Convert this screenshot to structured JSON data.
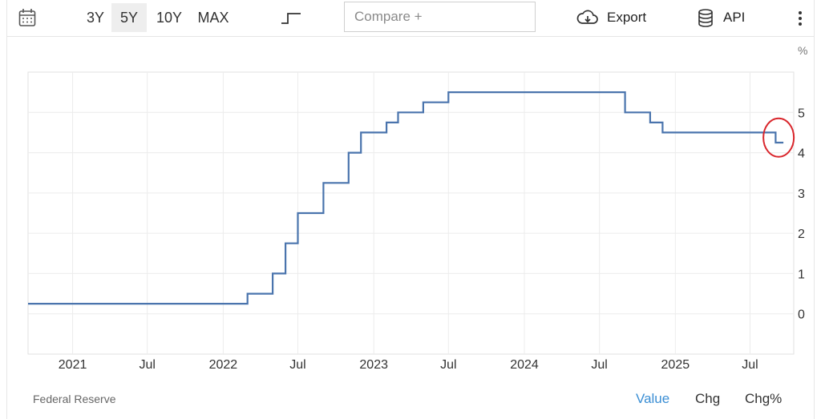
{
  "toolbar": {
    "ranges": [
      "3Y",
      "5Y",
      "10Y",
      "MAX"
    ],
    "active_range": "5Y",
    "compare_placeholder": "Compare +",
    "export_label": "Export",
    "api_label": "API"
  },
  "footer": {
    "source": "Federal Reserve",
    "modes": [
      "Value",
      "Chg",
      "Chg%"
    ],
    "active_mode": "Value"
  },
  "colors": {
    "line": "#4a74ad",
    "highlight_circle": "#d9262c",
    "active_mode": "#3a8ed4"
  },
  "chart_data": {
    "type": "line",
    "step": true,
    "unit_label": "%",
    "x_ticks": [
      "2021",
      "Jul",
      "2022",
      "Jul",
      "2023",
      "Jul",
      "2024",
      "Jul",
      "2025",
      "Jul"
    ],
    "y_ticks": [
      "0",
      "1",
      "2",
      "3",
      "4",
      "5"
    ],
    "ylim": [
      -1,
      6
    ],
    "grid": true,
    "y_axis_side": "right",
    "series": [
      {
        "x": [
          "2020-10",
          "2022-03",
          "2022-05",
          "2022-06",
          "2022-07",
          "2022-09",
          "2022-11",
          "2022-12",
          "2023-02",
          "2023-03",
          "2023-05",
          "2023-07",
          "2024-09",
          "2024-11",
          "2024-12",
          "2025-09",
          "2025-09-20"
        ],
        "values": [
          0.25,
          0.5,
          1.0,
          1.75,
          2.5,
          3.25,
          4.0,
          4.5,
          4.75,
          5.0,
          5.25,
          5.5,
          5.0,
          4.75,
          4.5,
          4.25,
          4.25
        ]
      }
    ],
    "annotations": [
      {
        "type": "circle",
        "target": "last-point"
      }
    ]
  }
}
